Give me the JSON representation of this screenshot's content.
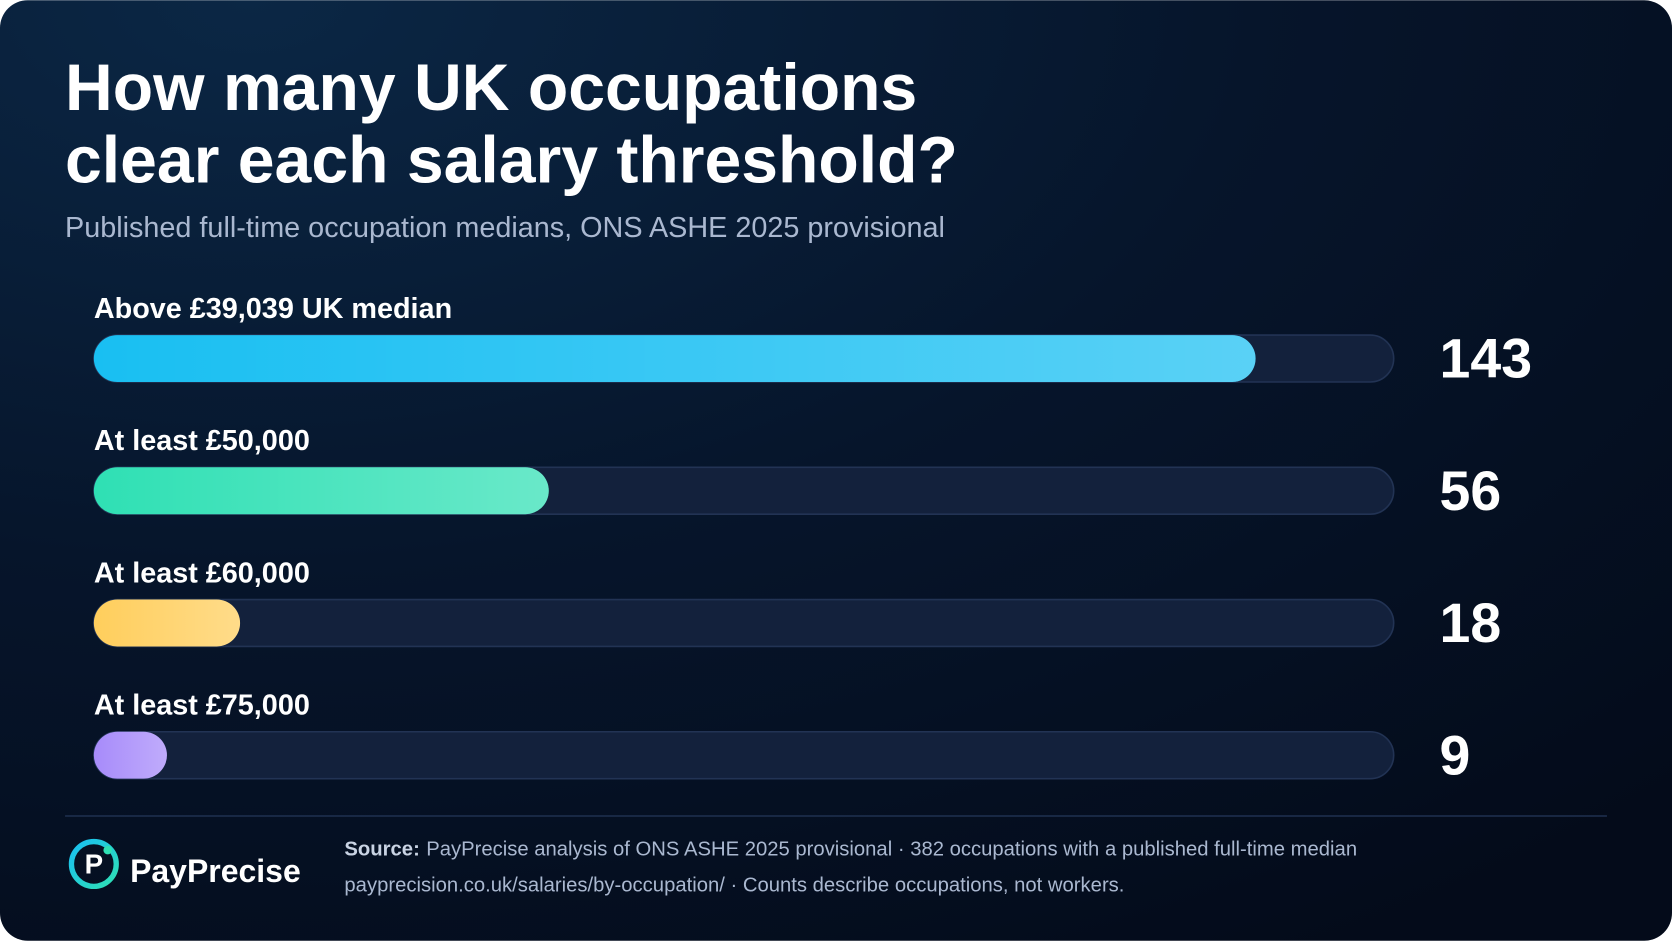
{
  "chart_data": {
    "type": "bar",
    "orientation": "horizontal",
    "title": [
      "How many UK occupations",
      "clear each salary threshold?"
    ],
    "subtitle": "Published full-time occupation medians, ONS ASHE 2025 provisional",
    "categories": [
      "Above £39,039 UK median",
      "At least £50,000",
      "At least £60,000",
      "At least £75,000"
    ],
    "values": [
      143,
      56,
      18,
      9
    ],
    "colors": [
      "#19bff2",
      "#2fe0b4",
      "#ffce5c",
      "#a78bfa"
    ],
    "xlim": [
      0,
      160
    ]
  },
  "footer": {
    "brand": "PayPrecise",
    "source_label": "Source:",
    "source_text": "PayPrecise analysis of ONS ASHE 2025 provisional · 382 occupations with a published full-time median",
    "note": "payprecision.co.uk/salaries/by-occupation/ · Counts describe occupations, not workers."
  }
}
